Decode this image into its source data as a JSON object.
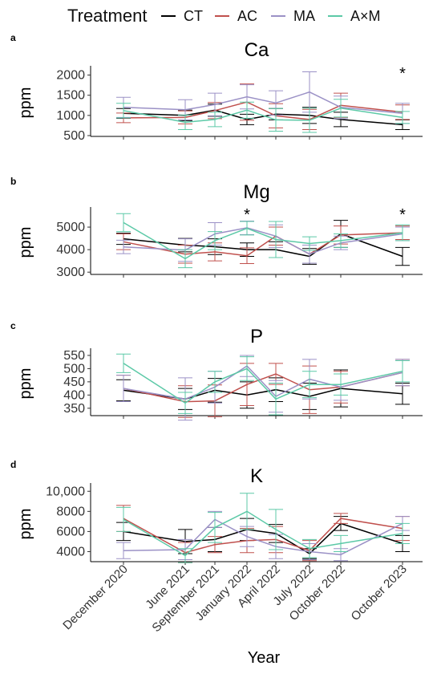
{
  "legend": {
    "title": "Treatment",
    "entries": [
      {
        "name": "CT",
        "color": "#000000"
      },
      {
        "name": "AC",
        "color": "#c0504d"
      },
      {
        "name": "MA",
        "color": "#9b91c6"
      },
      {
        "name": "A×M",
        "color": "#5cc9a7"
      }
    ]
  },
  "xlabel": "Year",
  "chart_data": [
    {
      "type": "line",
      "panel": "a",
      "title": "Ca",
      "ylabel": "ppm",
      "ylim": [
        480,
        2150
      ],
      "yticks": [
        500,
        1000,
        1500,
        2000
      ],
      "ytick_labels": [
        "500",
        "1000",
        "1500",
        "2000"
      ],
      "categories": [
        "December 2020",
        "June 2021",
        "September 2021",
        "January 2022",
        "April 2022",
        "July 2022",
        "October 2022",
        "October 2023"
      ],
      "series": [
        {
          "name": "CT",
          "values": [
            1050,
            1000,
            1130,
            900,
            1030,
            1000,
            900,
            770
          ],
          "err": [
            120,
            130,
            150,
            130,
            140,
            200,
            180,
            120
          ]
        },
        {
          "name": "AC",
          "values": [
            940,
            950,
            1120,
            1330,
            990,
            900,
            1250,
            1080
          ],
          "err": [
            120,
            160,
            200,
            450,
            300,
            250,
            300,
            180
          ]
        },
        {
          "name": "MA",
          "values": [
            1200,
            1140,
            1270,
            1460,
            1310,
            1580,
            1200,
            1050
          ],
          "err": [
            250,
            250,
            280,
            300,
            300,
            500,
            280,
            250
          ]
        },
        {
          "name": "A×M",
          "values": [
            1120,
            830,
            900,
            1130,
            890,
            880,
            1180,
            950
          ],
          "err": [
            180,
            180,
            180,
            200,
            280,
            300,
            220,
            150
          ]
        }
      ],
      "annotations": [
        {
          "x": "October 2023",
          "label": "*"
        }
      ]
    },
    {
      "type": "line",
      "panel": "b",
      "title": "Mg",
      "ylabel": "ppm",
      "ylim": [
        2900,
        5750
      ],
      "yticks": [
        3000,
        4000,
        5000
      ],
      "ytick_labels": [
        "3000",
        "4000",
        "5000"
      ],
      "categories": [
        "December 2020",
        "June 2021",
        "September 2021",
        "January 2022",
        "April 2022",
        "July 2022",
        "October 2022",
        "October 2023"
      ],
      "series": [
        {
          "name": "CT",
          "values": [
            4480,
            4200,
            4130,
            4000,
            4000,
            3700,
            4700,
            3700
          ],
          "err": [
            250,
            300,
            350,
            300,
            350,
            350,
            600,
            400
          ]
        },
        {
          "name": "AC",
          "values": [
            4350,
            3800,
            3900,
            3730,
            4600,
            3800,
            4650,
            4750
          ],
          "err": [
            350,
            400,
            400,
            350,
            400,
            400,
            400,
            300
          ]
        },
        {
          "name": "MA",
          "values": [
            4120,
            3980,
            4700,
            4970,
            4600,
            3800,
            4300,
            4700
          ],
          "err": [
            300,
            500,
            500,
            300,
            500,
            400,
            300,
            300
          ]
        },
        {
          "name": "A×M",
          "values": [
            5200,
            3600,
            4400,
            4950,
            4450,
            4270,
            4400,
            4750
          ],
          "err": [
            400,
            400,
            400,
            300,
            800,
            300,
            300,
            350
          ]
        }
      ],
      "annotations": [
        {
          "x": "January 2022",
          "label": "*"
        },
        {
          "x": "October 2023",
          "label": "*"
        }
      ]
    },
    {
      "type": "line",
      "panel": "c",
      "title": "P",
      "ylabel": "ppm",
      "ylim": [
        322,
        565
      ],
      "yticks": [
        350,
        400,
        450,
        500,
        550
      ],
      "ytick_labels": [
        "350",
        "400",
        "450",
        "500",
        "550"
      ],
      "categories": [
        "December 2020",
        "June 2021",
        "September 2021",
        "January 2022",
        "April 2022",
        "July 2022",
        "October 2022",
        "October 2023"
      ],
      "series": [
        {
          "name": "CT",
          "values": [
            418,
            385,
            418,
            400,
            420,
            395,
            425,
            405
          ],
          "err": [
            40,
            40,
            45,
            50,
            45,
            50,
            70,
            40
          ]
        },
        {
          "name": "AC",
          "values": [
            425,
            375,
            378,
            440,
            480,
            420,
            430,
            485
          ],
          "err": [
            50,
            60,
            60,
            80,
            40,
            90,
            60,
            50
          ]
        },
        {
          "name": "MA",
          "values": [
            425,
            385,
            430,
            510,
            395,
            460,
            430,
            485
          ],
          "err": [
            50,
            80,
            60,
            40,
            60,
            75,
            50,
            50
          ]
        },
        {
          "name": "A×M",
          "values": [
            520,
            370,
            450,
            500,
            385,
            440,
            440,
            490
          ],
          "err": [
            35,
            40,
            40,
            45,
            60,
            50,
            40,
            40
          ]
        }
      ],
      "annotations": []
    },
    {
      "type": "line",
      "panel": "d",
      "title": "K",
      "ylabel": "ppm",
      "ylim": [
        3000,
        10500
      ],
      "yticks": [
        4000,
        6000,
        8000,
        10000
      ],
      "ytick_labels": [
        "4000",
        "6000",
        "8000",
        "10,000"
      ],
      "categories": [
        "December 2020",
        "June 2021",
        "September 2021",
        "January 2022",
        "April 2022",
        "July 2022",
        "October 2022",
        "October 2023"
      ],
      "series": [
        {
          "name": "CT",
          "values": [
            6000,
            5000,
            5200,
            6200,
            5800,
            3800,
            6800,
            4800
          ],
          "err": [
            900,
            1200,
            1200,
            1100,
            900,
            500,
            700,
            800
          ]
        },
        {
          "name": "AC",
          "values": [
            7300,
            3900,
            4700,
            5100,
            5200,
            4100,
            7300,
            6300
          ],
          "err": [
            1300,
            1000,
            800,
            1200,
            1300,
            1000,
            500,
            1200
          ]
        },
        {
          "name": "MA",
          "values": [
            4100,
            4200,
            7200,
            5500,
            4500,
            4000,
            3700,
            6800
          ],
          "err": [
            800,
            1000,
            800,
            1000,
            1200,
            800,
            600,
            700
          ]
        },
        {
          "name": "A×M",
          "values": [
            7200,
            3600,
            6400,
            8000,
            6200,
            4300,
            4800,
            5800
          ],
          "err": [
            1200,
            700,
            1500,
            1800,
            2000,
            900,
            800,
            1000
          ]
        }
      ],
      "annotations": []
    }
  ]
}
